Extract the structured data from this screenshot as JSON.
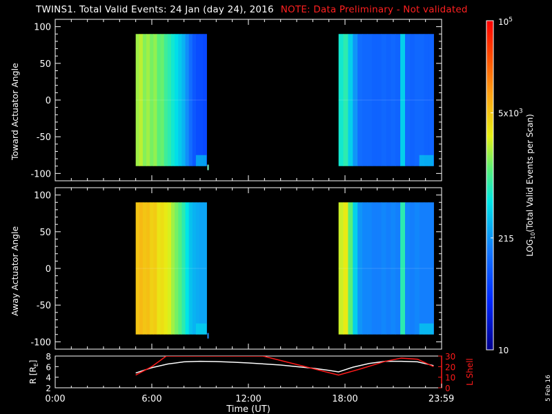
{
  "title": "TWINS1. Total Valid Events: 24 Jan (day  24), 2016",
  "note": "NOTE: Data Preliminary - Not validated",
  "date_stamp": "5 Feb 16",
  "colors": {
    "note": "#ff2020",
    "bg": "#000000",
    "axes": "#ffffff",
    "rline": "#ffffff",
    "lshell": "#ff1a1a"
  },
  "chart_data": [
    {
      "type": "heatmap",
      "panel": "toward",
      "ylabel": "Toward Actuator Angle",
      "xlim": [
        0,
        24
      ],
      "ylim": [
        -110,
        110
      ],
      "yticks": [
        100,
        50,
        0,
        -50,
        -100
      ],
      "blocks": [
        {
          "t0": 5.0,
          "t1": 9.4,
          "a0": -90,
          "a1": 90,
          "profile": [
            0.6,
            0.62,
            0.58,
            0.6,
            0.57,
            0.59,
            0.55,
            0.56,
            0.52,
            0.5,
            0.47,
            0.44,
            0.41,
            0.38,
            0.33,
            0.28,
            0.24,
            0.22,
            0.22,
            0.21
          ]
        },
        {
          "t0": 17.6,
          "t1": 23.5,
          "a0": -90,
          "a1": 90,
          "profile": [
            0.47,
            0.5,
            0.42,
            0.34,
            0.28,
            0.27,
            0.27,
            0.26,
            0.26,
            0.27,
            0.26,
            0.27,
            0.26,
            0.42,
            0.27,
            0.26,
            0.27,
            0.27,
            0.26,
            0.26
          ]
        }
      ]
    },
    {
      "type": "heatmap",
      "panel": "away",
      "ylabel": "Away Actuator Angle",
      "xlim": [
        0,
        24
      ],
      "ylim": [
        -110,
        110
      ],
      "yticks": [
        100,
        50,
        0,
        -50,
        -100
      ],
      "blocks": [
        {
          "t0": 5.0,
          "t1": 9.4,
          "a0": -90,
          "a1": 90,
          "profile": [
            0.72,
            0.74,
            0.72,
            0.73,
            0.7,
            0.71,
            0.67,
            0.68,
            0.66,
            0.64,
            0.6,
            0.57,
            0.54,
            0.5,
            0.45,
            0.4,
            0.38,
            0.37,
            0.36,
            0.36
          ]
        },
        {
          "t0": 17.6,
          "t1": 23.5,
          "a0": -90,
          "a1": 90,
          "profile": [
            0.63,
            0.66,
            0.55,
            0.42,
            0.34,
            0.32,
            0.32,
            0.31,
            0.31,
            0.32,
            0.31,
            0.32,
            0.31,
            0.5,
            0.32,
            0.31,
            0.32,
            0.31,
            0.31,
            0.31
          ]
        }
      ]
    },
    {
      "type": "line",
      "panel": "orbit",
      "ylabel": "R [R",
      "ylabel_sub": "E",
      "ylabel_close": "]",
      "ylim_left": [
        2,
        8
      ],
      "yticks_left": [
        "8",
        "6",
        "4",
        "2"
      ],
      "ylabel_right": "L Shell",
      "ylim_right": [
        0,
        30
      ],
      "yticks_right": [
        "30",
        "20",
        "10",
        "0"
      ],
      "series": [
        {
          "axis": "left",
          "x": [
            5.0,
            6.0,
            7.0,
            8.0,
            9.0,
            10.0,
            11.0,
            12.0,
            13.0,
            14.0,
            15.0,
            16.0,
            17.0,
            17.6,
            18.5,
            19.5,
            20.5,
            21.5,
            22.5,
            23.5
          ],
          "y": [
            4.8,
            5.8,
            6.5,
            6.9,
            7.0,
            6.95,
            6.85,
            6.7,
            6.5,
            6.3,
            6.0,
            5.7,
            5.3,
            5.0,
            5.9,
            6.6,
            7.0,
            7.0,
            6.9,
            6.2
          ]
        },
        {
          "axis": "right",
          "x": [
            5.0,
            6.0,
            6.9,
            12.9,
            15.0,
            17.6,
            19.0,
            20.5,
            21.5,
            22.5,
            23.5
          ],
          "y": [
            12,
            20,
            30,
            30,
            22,
            12,
            18,
            25,
            28,
            27,
            20
          ]
        }
      ],
      "colorbar": {
        "label_main": "LOG",
        "label_sub": "10",
        "label_rest": "(Total Valid Events per Scan)",
        "ticks": [
          {
            "frac": 1.0,
            "base": "10",
            "sup": "5"
          },
          {
            "frac": 0.72,
            "base": "5x10",
            "sup": "3"
          },
          {
            "frac": 0.34,
            "base": "215",
            "sup": ""
          },
          {
            "frac": 0.0,
            "base": "10",
            "sup": ""
          }
        ]
      },
      "xticks": [
        {
          "t": 0,
          "label": "0:00"
        },
        {
          "t": 6,
          "label": "6:00"
        },
        {
          "t": 12,
          "label": "12:00"
        },
        {
          "t": 18,
          "label": "18:00"
        },
        {
          "t": 23.983,
          "label": "23:59"
        }
      ],
      "xlabel": "Time (UT)"
    }
  ]
}
